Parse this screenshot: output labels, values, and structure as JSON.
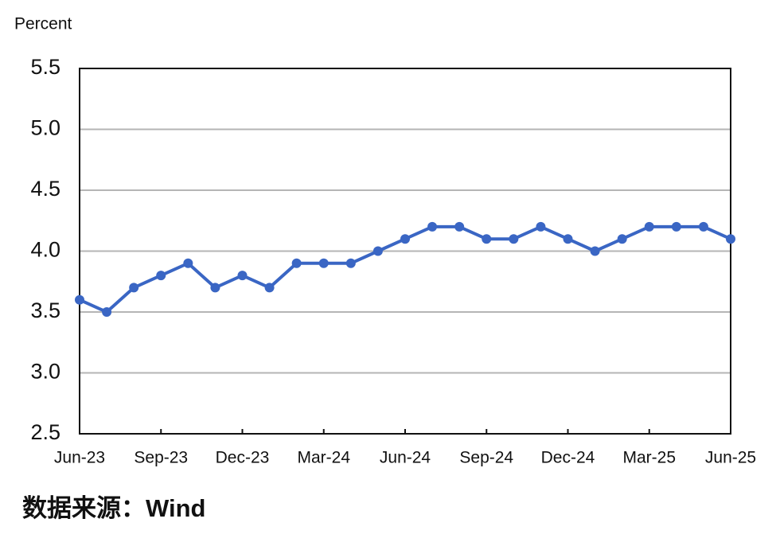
{
  "chart_data": {
    "type": "line",
    "y_label": "Percent",
    "source": "数据来源：Wind",
    "categories": [
      "Jun-23",
      null,
      null,
      "Sep-23",
      null,
      null,
      "Dec-23",
      null,
      null,
      "Mar-24",
      null,
      null,
      "Jun-24",
      null,
      null,
      "Sep-24",
      null,
      null,
      "Dec-24",
      null,
      null,
      "Mar-25",
      null,
      null,
      "Jun-25"
    ],
    "series": [
      {
        "color": "#3a66c4",
        "values": [
          3.6,
          3.5,
          3.7,
          3.8,
          3.9,
          3.7,
          3.8,
          3.7,
          3.9,
          3.9,
          3.9,
          4.0,
          4.1,
          4.2,
          4.2,
          4.1,
          4.1,
          4.2,
          4.1,
          4.0,
          4.1,
          4.2,
          4.2,
          4.2,
          4.1
        ]
      }
    ],
    "ylim": [
      2.5,
      5.5
    ],
    "yticks": [
      2.5,
      {
        "value": 3,
        "label": "3.0"
      },
      3.5,
      {
        "value": 4,
        "label": "4.0"
      },
      4.5,
      {
        "value": 5,
        "label": "5.0"
      },
      5.5
    ],
    "grid": true
  }
}
